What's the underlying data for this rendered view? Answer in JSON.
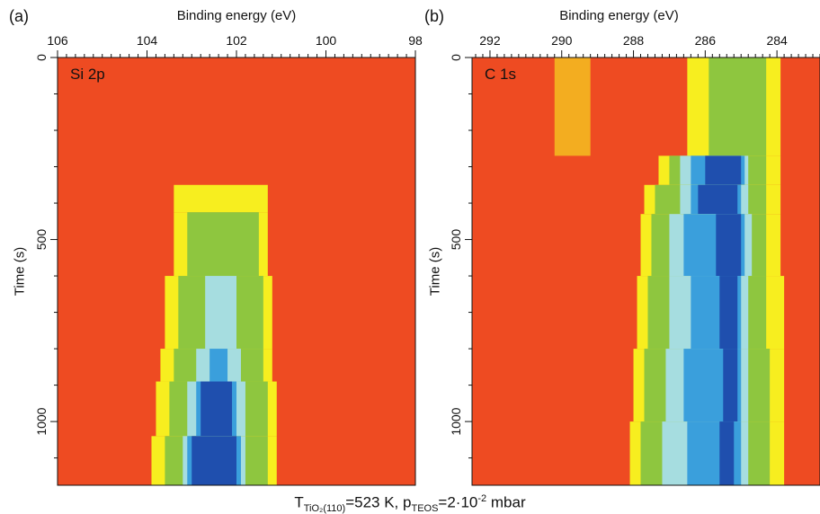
{
  "chart_data": [
    {
      "type": "heatmap",
      "panel_label": "(a)",
      "inset_label": "Si 2p",
      "xlabel": "Binding energy (eV)",
      "ylabel": "Time (s)",
      "xlim": [
        106,
        98
      ],
      "ylim": [
        0,
        1175
      ],
      "x_ticks": [
        "106",
        "104",
        "102",
        "100",
        "98"
      ],
      "y_ticks": [
        "0",
        "500",
        "1000"
      ],
      "x_tick_values": [
        106,
        104,
        102,
        100,
        98
      ],
      "y_tick_values": [
        0,
        500,
        1000
      ],
      "background_color": "#ee4b22",
      "rows": [
        {
          "t0": 0,
          "t1": 350,
          "bands": []
        },
        {
          "t0": 350,
          "t1": 425,
          "bands": [
            {
              "from": 103.4,
              "to": 101.3,
              "level": 1
            }
          ]
        },
        {
          "t0": 425,
          "t1": 600,
          "bands": [
            {
              "from": 103.4,
              "to": 101.3,
              "level": 1
            },
            {
              "from": 103.1,
              "to": 101.5,
              "level": 2
            }
          ]
        },
        {
          "t0": 600,
          "t1": 800,
          "bands": [
            {
              "from": 103.6,
              "to": 101.2,
              "level": 1
            },
            {
              "from": 103.3,
              "to": 101.4,
              "level": 2
            },
            {
              "from": 102.7,
              "to": 102.0,
              "level": 3
            }
          ]
        },
        {
          "t0": 800,
          "t1": 890,
          "bands": [
            {
              "from": 103.7,
              "to": 101.2,
              "level": 1
            },
            {
              "from": 103.4,
              "to": 101.4,
              "level": 2
            },
            {
              "from": 102.9,
              "to": 101.9,
              "level": 3
            },
            {
              "from": 102.6,
              "to": 102.2,
              "level": 4
            }
          ]
        },
        {
          "t0": 890,
          "t1": 1040,
          "bands": [
            {
              "from": 103.8,
              "to": 101.1,
              "level": 1
            },
            {
              "from": 103.5,
              "to": 101.3,
              "level": 2
            },
            {
              "from": 103.1,
              "to": 101.8,
              "level": 3
            },
            {
              "from": 102.9,
              "to": 102.0,
              "level": 4
            },
            {
              "from": 102.8,
              "to": 102.1,
              "level": 5
            }
          ]
        },
        {
          "t0": 1040,
          "t1": 1175,
          "bands": [
            {
              "from": 103.9,
              "to": 101.1,
              "level": 1
            },
            {
              "from": 103.6,
              "to": 101.3,
              "level": 2
            },
            {
              "from": 103.2,
              "to": 101.8,
              "level": 3
            },
            {
              "from": 103.1,
              "to": 101.9,
              "level": 4
            },
            {
              "from": 103.0,
              "to": 102.0,
              "level": 5
            }
          ]
        }
      ]
    },
    {
      "type": "heatmap",
      "panel_label": "(b)",
      "inset_label": "C 1s",
      "xlabel": "Binding energy (eV)",
      "ylabel": "Time (s)",
      "xlim": [
        292.5,
        282.8
      ],
      "ylim": [
        0,
        1175
      ],
      "x_ticks": [
        "292",
        "290",
        "288",
        "286",
        "284"
      ],
      "y_ticks": [
        "0",
        "500",
        "1000"
      ],
      "x_tick_values": [
        292,
        290,
        288,
        286,
        284
      ],
      "y_tick_values": [
        0,
        500,
        1000
      ],
      "background_color": "#ee4b22",
      "rows": [
        {
          "t0": 0,
          "t1": 270,
          "bands": [
            {
              "from": 290.2,
              "to": 289.2,
              "level": 0.6
            },
            {
              "from": 286.5,
              "to": 283.9,
              "level": 1
            },
            {
              "from": 285.9,
              "to": 284.3,
              "level": 2
            }
          ]
        },
        {
          "t0": 270,
          "t1": 350,
          "bands": [
            {
              "from": 287.3,
              "to": 283.9,
              "level": 1
            },
            {
              "from": 287.0,
              "to": 284.3,
              "level": 2
            },
            {
              "from": 286.7,
              "to": 284.8,
              "level": 3
            },
            {
              "from": 286.4,
              "to": 284.9,
              "level": 4
            },
            {
              "from": 286.0,
              "to": 285.0,
              "level": 5
            }
          ]
        },
        {
          "t0": 350,
          "t1": 430,
          "bands": [
            {
              "from": 287.7,
              "to": 283.9,
              "level": 1
            },
            {
              "from": 287.4,
              "to": 284.3,
              "level": 2
            },
            {
              "from": 286.7,
              "to": 284.8,
              "level": 3
            },
            {
              "from": 286.4,
              "to": 285.0,
              "level": 4
            },
            {
              "from": 286.2,
              "to": 285.1,
              "level": 5
            }
          ]
        },
        {
          "t0": 430,
          "t1": 600,
          "bands": [
            {
              "from": 287.8,
              "to": 283.9,
              "level": 1
            },
            {
              "from": 287.5,
              "to": 284.3,
              "level": 2
            },
            {
              "from": 287.0,
              "to": 284.7,
              "level": 3
            },
            {
              "from": 286.6,
              "to": 284.9,
              "level": 4
            },
            {
              "from": 285.7,
              "to": 285.0,
              "level": 5
            }
          ]
        },
        {
          "t0": 600,
          "t1": 800,
          "bands": [
            {
              "from": 287.9,
              "to": 283.8,
              "level": 1
            },
            {
              "from": 287.6,
              "to": 284.3,
              "level": 2
            },
            {
              "from": 287.0,
              "to": 284.8,
              "level": 3
            },
            {
              "from": 286.4,
              "to": 285.0,
              "level": 4
            },
            {
              "from": 285.6,
              "to": 285.1,
              "level": 5
            }
          ]
        },
        {
          "t0": 800,
          "t1": 1000,
          "bands": [
            {
              "from": 288.0,
              "to": 283.8,
              "level": 1
            },
            {
              "from": 287.7,
              "to": 284.2,
              "level": 2
            },
            {
              "from": 287.1,
              "to": 284.8,
              "level": 3
            },
            {
              "from": 286.6,
              "to": 285.0,
              "level": 4
            },
            {
              "from": 285.5,
              "to": 285.1,
              "level": 5
            }
          ]
        },
        {
          "t0": 1000,
          "t1": 1175,
          "bands": [
            {
              "from": 288.1,
              "to": 283.8,
              "level": 1
            },
            {
              "from": 287.8,
              "to": 284.2,
              "level": 2
            },
            {
              "from": 287.2,
              "to": 284.8,
              "level": 3
            },
            {
              "from": 286.5,
              "to": 285.0,
              "level": 4
            },
            {
              "from": 285.6,
              "to": 285.2,
              "level": 5
            }
          ]
        }
      ]
    }
  ],
  "colormap": [
    "#ee4b22",
    "#f7ee1f",
    "#8ec63f",
    "#a6dde0",
    "#3a9fdc",
    "#1f4fae"
  ],
  "caption": {
    "t_main": "T",
    "t_sub": "TiO₂(110)",
    "t_value": "=523 K, p",
    "p_sub": "TEOS",
    "p_value": "=2·10",
    "p_sup": "-2",
    "p_unit": " mbar"
  }
}
